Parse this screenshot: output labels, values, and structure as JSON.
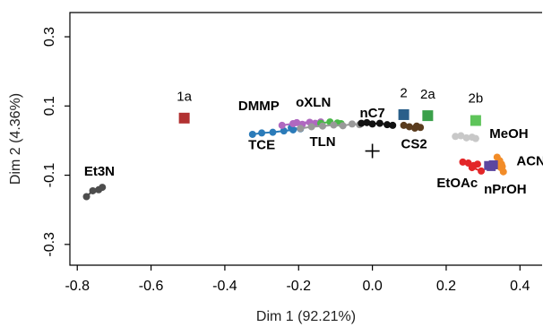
{
  "chart_data": {
    "type": "scatter",
    "xlabel": "Dim 1 (92.21%)",
    "ylabel": "Dim 2 (4.36%)",
    "xlim": [
      -0.82,
      0.46
    ],
    "ylim": [
      -0.36,
      0.37
    ],
    "xticks": [
      {
        "v": -0.8,
        "label": "-0.8"
      },
      {
        "v": -0.6,
        "label": "-0.6"
      },
      {
        "v": -0.4,
        "label": "-0.4"
      },
      {
        "v": -0.2,
        "label": "-0.2"
      },
      {
        "v": 0.0,
        "label": "0.0"
      },
      {
        "v": 0.2,
        "label": "0.2"
      },
      {
        "v": 0.4,
        "label": "0.4"
      }
    ],
    "yticks": [
      {
        "v": 0.3,
        "label": "0.3"
      },
      {
        "v": 0.1,
        "label": "0.1"
      },
      {
        "v": -0.1,
        "label": "-0.1"
      },
      {
        "v": -0.3,
        "label": "-0.3"
      }
    ],
    "origin": [
      0.0,
      -0.03
    ],
    "series": [
      {
        "name": "Et3N",
        "color": "#4d4d4d",
        "line": true,
        "marker": "circle",
        "points": [
          [
            -0.775,
            -0.162
          ],
          [
            -0.758,
            -0.145
          ],
          [
            -0.742,
            -0.142
          ],
          [
            -0.732,
            -0.135
          ]
        ],
        "label_xy": [
          -0.74,
          -0.091
        ]
      },
      {
        "name": "TCE",
        "color": "#2b7bb9",
        "line": true,
        "marker": "circle",
        "points": [
          [
            -0.325,
            0.018
          ],
          [
            -0.3,
            0.022
          ],
          [
            -0.27,
            0.024
          ],
          [
            -0.24,
            0.028
          ],
          [
            -0.215,
            0.031
          ],
          [
            -0.195,
            0.034
          ],
          [
            -0.22,
            0.037
          ]
        ],
        "label_xy": [
          -0.3,
          -0.014
        ]
      },
      {
        "name": "DMMP",
        "color": "#b068c0",
        "line": true,
        "marker": "circle",
        "points": [
          [
            -0.245,
            0.044
          ],
          [
            -0.215,
            0.049
          ],
          [
            -0.19,
            0.047
          ],
          [
            -0.17,
            0.053
          ],
          [
            -0.155,
            0.05
          ],
          [
            -0.14,
            0.054
          ],
          [
            -0.205,
            0.052
          ]
        ],
        "label_xy": [
          -0.308,
          0.098
        ]
      },
      {
        "name": "oXLN",
        "color": "#4ab848",
        "line": true,
        "marker": "circle",
        "points": [
          [
            -0.14,
            0.05
          ],
          [
            -0.115,
            0.054
          ],
          [
            -0.095,
            0.051
          ],
          [
            -0.085,
            0.049
          ]
        ],
        "label_xy": [
          -0.16,
          0.108
        ]
      },
      {
        "name": "TLN",
        "color": "#999999",
        "line": true,
        "marker": "circle",
        "points": [
          [
            -0.195,
            0.035
          ],
          [
            -0.165,
            0.04
          ],
          [
            -0.135,
            0.042
          ],
          [
            -0.105,
            0.045
          ],
          [
            -0.08,
            0.043
          ],
          [
            -0.055,
            0.048
          ],
          [
            -0.035,
            0.046
          ]
        ],
        "label_xy": [
          -0.135,
          -0.006
        ]
      },
      {
        "name": "nC7",
        "color": "#111111",
        "line": true,
        "marker": "circle",
        "points": [
          [
            -0.03,
            0.05
          ],
          [
            -0.015,
            0.052
          ],
          [
            0.0,
            0.048
          ],
          [
            0.02,
            0.05
          ],
          [
            0.04,
            0.046
          ],
          [
            0.055,
            0.044
          ]
        ],
        "label_xy": [
          0.0,
          0.078
        ]
      },
      {
        "name": "CS2",
        "color": "#5a3c1e",
        "line": true,
        "marker": "circle",
        "points": [
          [
            0.085,
            0.044
          ],
          [
            0.1,
            0.04
          ],
          [
            0.115,
            0.036
          ],
          [
            0.13,
            0.038
          ],
          [
            0.12,
            0.042
          ]
        ],
        "label_xy": [
          0.113,
          -0.012
        ]
      },
      {
        "name": "MeOH",
        "color": "#c8c8c8",
        "line": true,
        "marker": "circle",
        "points": [
          [
            0.225,
            0.012
          ],
          [
            0.24,
            0.014
          ],
          [
            0.255,
            0.008
          ],
          [
            0.27,
            0.01
          ],
          [
            0.28,
            0.006
          ]
        ],
        "label_xy": [
          0.37,
          0.018
        ]
      },
      {
        "name": "ACN",
        "color": "#f28c28",
        "line": true,
        "marker": "circle",
        "points": [
          [
            0.338,
            -0.048
          ],
          [
            0.345,
            -0.058
          ],
          [
            0.35,
            -0.068
          ],
          [
            0.348,
            -0.078
          ],
          [
            0.355,
            -0.09
          ],
          [
            0.352,
            -0.075
          ],
          [
            0.343,
            -0.063
          ]
        ],
        "label_xy": [
          0.43,
          -0.061
        ]
      },
      {
        "name": "EtOAc",
        "color": "#e32628",
        "line": true,
        "marker": "circle",
        "points": [
          [
            0.245,
            -0.062
          ],
          [
            0.26,
            -0.065
          ],
          [
            0.275,
            -0.072
          ],
          [
            0.285,
            -0.068
          ],
          [
            0.27,
            -0.078
          ],
          [
            0.295,
            -0.088
          ]
        ],
        "label_xy": [
          0.23,
          -0.125
        ]
      },
      {
        "name": "nPrOH",
        "color": "#5c46a0",
        "line": false,
        "marker": "square",
        "points": [
          [
            0.315,
            -0.072
          ],
          [
            0.328,
            -0.07
          ],
          [
            0.322,
            -0.075
          ]
        ],
        "label_xy": [
          0.36,
          -0.143
        ]
      }
    ],
    "references": [
      {
        "name": "1a",
        "x": -0.51,
        "y": 0.065,
        "color": "#b23232",
        "label_dy": 0.06
      },
      {
        "name": "2",
        "x": 0.085,
        "y": 0.075,
        "color": "#2a5f8a",
        "label_dy": 0.06
      },
      {
        "name": "2a",
        "x": 0.15,
        "y": 0.072,
        "color": "#3aa04a",
        "label_dy": 0.06
      },
      {
        "name": "2b",
        "x": 0.28,
        "y": 0.058,
        "color": "#5ec45a",
        "label_dy": 0.062
      }
    ]
  }
}
